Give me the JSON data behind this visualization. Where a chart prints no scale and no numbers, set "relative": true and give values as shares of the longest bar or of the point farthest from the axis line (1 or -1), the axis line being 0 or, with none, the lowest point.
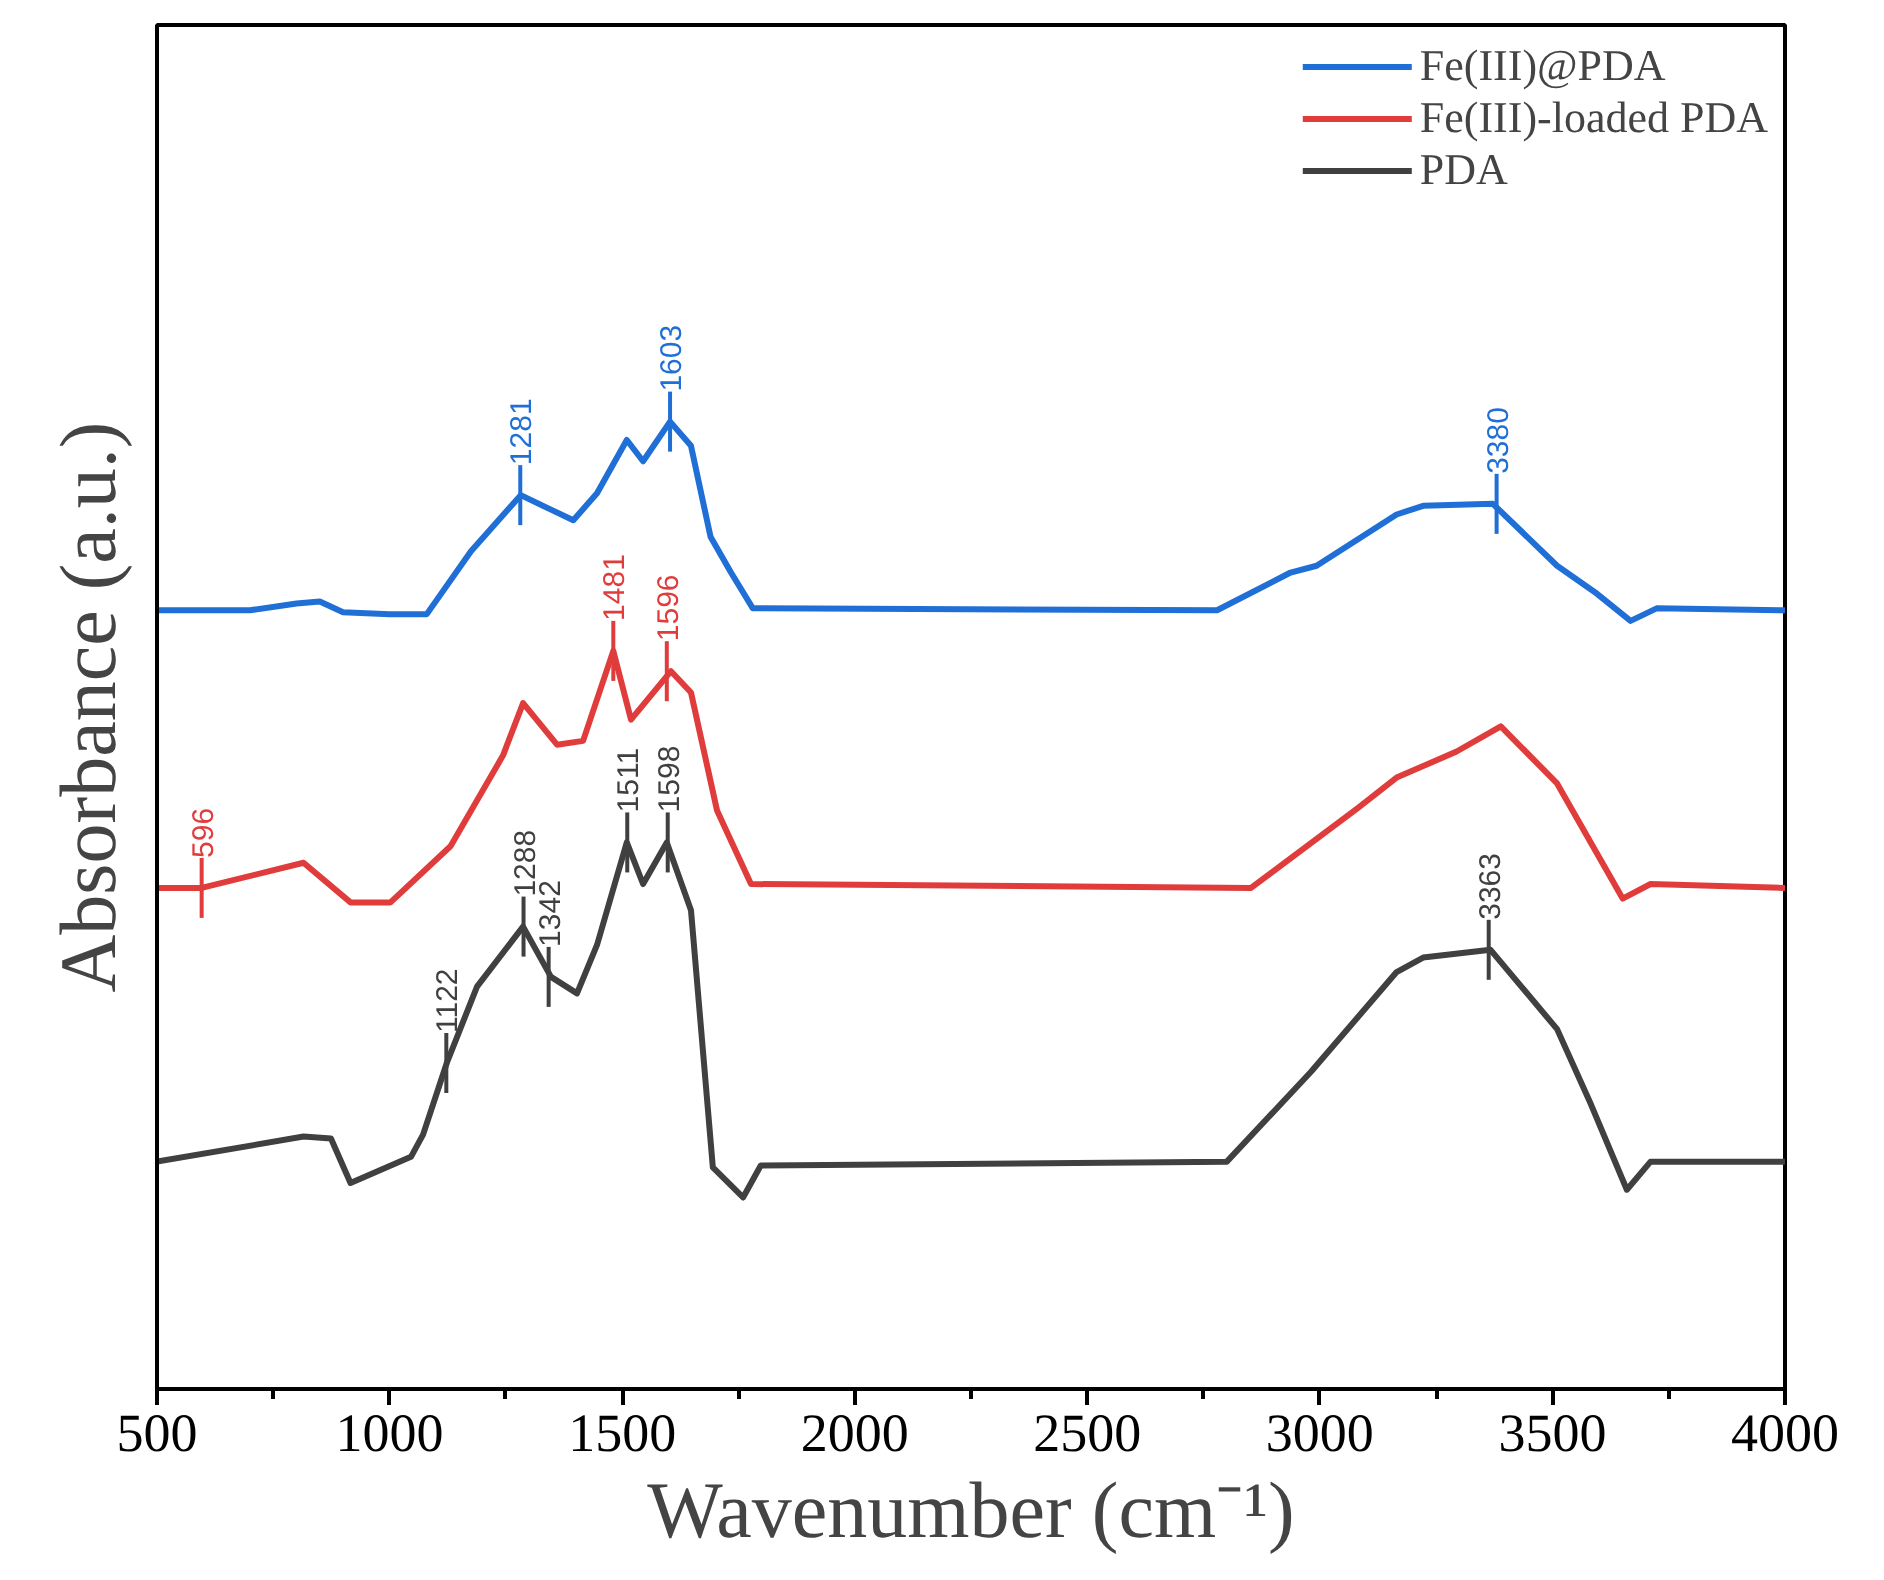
{
  "chart_data": {
    "type": "line",
    "relative": true,
    "xlabel": "Wavenumber (cm⁻¹)",
    "ylabel": "Absorbance (a.u.)",
    "xlim": [
      500,
      4000
    ],
    "xticks": [
      500,
      1000,
      1500,
      2000,
      2500,
      3000,
      3500,
      4000
    ],
    "legend": "top right",
    "tick_labels": "x",
    "marker": "none",
    "line_style": "solid",
    "series": [
      {
        "name": "Fe(III)@PDA",
        "color": "#1f6fd6",
        "x": [
          500,
          700,
          800,
          850,
          900,
          1000,
          1080,
          1175,
          1282,
          1347,
          1395,
          1446,
          1510,
          1545,
          1603,
          1648,
          1690,
          1734,
          1781,
          2779,
          2937,
          2993,
          3165,
          3222,
          3372,
          3510,
          3596,
          3668,
          3724,
          4000
        ],
        "values": [
          0.805,
          0.805,
          0.812,
          0.814,
          0.803,
          0.801,
          0.801,
          0.866,
          0.924,
          0.909,
          0.898,
          0.926,
          0.981,
          0.959,
          1,
          0.975,
          0.881,
          0.844,
          0.807,
          0.805,
          0.844,
          0.851,
          0.904,
          0.913,
          0.915,
          0.851,
          0.822,
          0.794,
          0.807,
          0.805
        ]
      },
      {
        "name": "Fe(III)-loaded PDA",
        "color": "#e03c3c",
        "x": [
          500,
          596,
          815,
          916,
          1002,
          1131,
          1244,
          1287,
          1360,
          1416,
          1481,
          1519,
          1605,
          1648,
          1704,
          1777,
          2852,
          3080,
          3165,
          3294,
          3389,
          3510,
          3651,
          3711,
          4000
        ],
        "values": [
          0.518,
          0.518,
          0.544,
          0.503,
          0.503,
          0.561,
          0.655,
          0.709,
          0.666,
          0.67,
          0.763,
          0.692,
          0.742,
          0.72,
          0.598,
          0.522,
          0.518,
          0.6,
          0.632,
          0.659,
          0.685,
          0.626,
          0.507,
          0.522,
          0.518
        ]
      },
      {
        "name": "PDA",
        "color": "#404040",
        "x": [
          500,
          815,
          874,
          916,
          1046,
          1072,
          1123,
          1188,
          1287,
          1347,
          1403,
          1446,
          1510,
          1545,
          1596,
          1648,
          1695,
          1760,
          1798,
          2800,
          2981,
          3165,
          3222,
          3367,
          3510,
          3583,
          3660,
          3711,
          4000
        ],
        "values": [
          0.235,
          0.261,
          0.259,
          0.213,
          0.24,
          0.263,
          0.337,
          0.416,
          0.478,
          0.426,
          0.409,
          0.459,
          0.565,
          0.522,
          0.565,
          0.495,
          0.229,
          0.198,
          0.231,
          0.235,
          0.328,
          0.431,
          0.446,
          0.454,
          0.372,
          0.294,
          0.206,
          0.235,
          0.235
        ]
      }
    ],
    "annotations": [
      {
        "text": "1281",
        "x": 1281,
        "y": 0.924
      },
      {
        "text": "1603",
        "x": 1603,
        "y": 1
      },
      {
        "text": "3380",
        "x": 3380,
        "y": 0.915
      },
      {
        "text": "596",
        "x": 596,
        "y": 0.518
      },
      {
        "text": "1481",
        "x": 1481,
        "y": 0.763
      },
      {
        "text": "1596",
        "x": 1596,
        "y": 0.742
      },
      {
        "text": "1122",
        "x": 1122,
        "y": 0.337
      },
      {
        "text": "1288",
        "x": 1288,
        "y": 0.478
      },
      {
        "text": "1342",
        "x": 1342,
        "y": 0.426
      },
      {
        "text": "1511",
        "x": 1511,
        "y": 0.565
      },
      {
        "text": "1598",
        "x": 1598,
        "y": 0.565
      },
      {
        "text": "3363",
        "x": 3363,
        "y": 0.454
      }
    ]
  }
}
